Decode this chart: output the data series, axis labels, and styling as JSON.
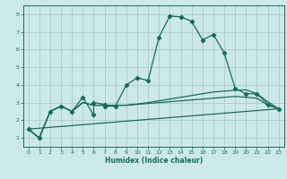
{
  "xlabel": "Humidex (Indice chaleur)",
  "ylabel": "",
  "bg_color": "#cce8e8",
  "grid_color": "#aacccc",
  "line_color": "#1a6b5a",
  "xlim": [
    -0.5,
    23.5
  ],
  "ylim": [
    0.5,
    8.5
  ],
  "yticks": [
    1,
    2,
    3,
    4,
    5,
    6,
    7,
    8
  ],
  "xticks": [
    0,
    1,
    2,
    3,
    4,
    5,
    6,
    7,
    8,
    9,
    10,
    11,
    12,
    13,
    14,
    15,
    16,
    17,
    18,
    19,
    20,
    21,
    22,
    23
  ],
  "series1_x": [
    0,
    1,
    2,
    3,
    4,
    5,
    6,
    6,
    7,
    7,
    8,
    9,
    10,
    11,
    12,
    13,
    14,
    15,
    16,
    17,
    18,
    19,
    20,
    21,
    22,
    23
  ],
  "series1_y": [
    1.5,
    1.0,
    2.5,
    2.8,
    2.5,
    3.3,
    2.3,
    3.0,
    2.9,
    2.8,
    2.8,
    4.0,
    4.4,
    4.25,
    6.7,
    7.9,
    7.85,
    7.6,
    6.55,
    6.85,
    5.8,
    3.8,
    3.5,
    3.5,
    2.9,
    2.65
  ],
  "series2_x": [
    0,
    1,
    2,
    3,
    4,
    5,
    6,
    7,
    8,
    9,
    10,
    11,
    12,
    13,
    14,
    15,
    16,
    17,
    18,
    19,
    20,
    21,
    22,
    23
  ],
  "series2_y": [
    1.5,
    1.0,
    2.5,
    2.8,
    2.5,
    3.0,
    2.85,
    2.85,
    2.85,
    2.85,
    2.9,
    2.95,
    3.0,
    3.05,
    3.1,
    3.15,
    3.2,
    3.25,
    3.3,
    3.35,
    3.3,
    3.25,
    2.85,
    2.65
  ],
  "series3_x": [
    0,
    1,
    2,
    3,
    4,
    5,
    6,
    7,
    8,
    9,
    10,
    11,
    12,
    13,
    14,
    15,
    16,
    17,
    18,
    19,
    20,
    21,
    22,
    23
  ],
  "series3_y": [
    1.5,
    1.0,
    2.5,
    2.8,
    2.5,
    3.0,
    2.85,
    2.85,
    2.85,
    2.85,
    2.92,
    3.0,
    3.1,
    3.2,
    3.3,
    3.4,
    3.5,
    3.6,
    3.65,
    3.7,
    3.72,
    3.5,
    3.05,
    2.65
  ],
  "series4_x": [
    0,
    23
  ],
  "series4_y": [
    1.5,
    2.65
  ],
  "marker": "D",
  "markersize": 2.2,
  "linewidth": 0.9,
  "font_color": "#1a6b5a",
  "tick_fontsize": 4.5,
  "xlabel_fontsize": 5.5
}
